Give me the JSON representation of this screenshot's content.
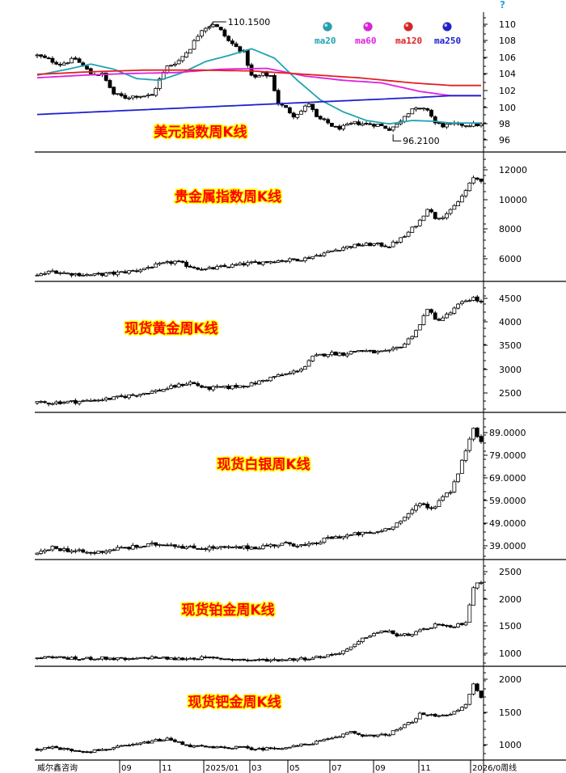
{
  "chart_data": [
    {
      "type": "candlestick",
      "title": "美元指数周K线",
      "ylim": [
        95,
        111
      ],
      "yticks": [
        "96",
        "98",
        "100",
        "102",
        "104",
        "106",
        "108",
        "110"
      ],
      "legend": [
        {
          "name": "ma20",
          "color": "#1fa3b3"
        },
        {
          "name": "ma60",
          "color": "#e020e0"
        },
        {
          "name": "ma120",
          "color": "#e02020"
        },
        {
          "name": "ma250",
          "color": "#2020d0"
        }
      ],
      "annotations": {
        "high": "110.1500",
        "low": "96.2100"
      },
      "path": [
        [
          0,
          106.2
        ],
        [
          6,
          105.2
        ],
        [
          10,
          105.8
        ],
        [
          14,
          104.1
        ],
        [
          17,
          104.0
        ],
        [
          20,
          101.7
        ],
        [
          23,
          101.3
        ],
        [
          26,
          101.5
        ],
        [
          30,
          101.5
        ],
        [
          32,
          103.4
        ],
        [
          34,
          104.9
        ],
        [
          37,
          105.6
        ],
        [
          40,
          107.1
        ],
        [
          43,
          109.3
        ],
        [
          46,
          109.9
        ],
        [
          48,
          109.1
        ],
        [
          50,
          107.9
        ],
        [
          52,
          107.2
        ],
        [
          54,
          106.6
        ],
        [
          56,
          103.8
        ],
        [
          57,
          103.6
        ],
        [
          59,
          104.0
        ],
        [
          61,
          103.8
        ],
        [
          63,
          100.6
        ],
        [
          65,
          100.0
        ],
        [
          67,
          99.2
        ],
        [
          69,
          99.7
        ],
        [
          71,
          100.6
        ],
        [
          73,
          98.9
        ],
        [
          76,
          98.3
        ],
        [
          78,
          97.7
        ],
        [
          80,
          97.8
        ],
        [
          83,
          98.3
        ],
        [
          86,
          98.2
        ],
        [
          89,
          98.1
        ],
        [
          92,
          97.6
        ],
        [
          94,
          98.1
        ],
        [
          96,
          99.2
        ],
        [
          98,
          100.0
        ],
        [
          100,
          99.8
        ],
        [
          102,
          99.9
        ],
        [
          104,
          98.3
        ],
        [
          106,
          98.0
        ],
        [
          108,
          98.1
        ]
      ],
      "ma": [
        {
          "name": "ma20",
          "points": [
            [
              0,
              103.9
            ],
            [
              8,
              104.6
            ],
            [
              14,
              105.2
            ],
            [
              20,
              104.6
            ],
            [
              26,
              103.5
            ],
            [
              32,
              103.3
            ],
            [
              38,
              104.2
            ],
            [
              44,
              105.5
            ],
            [
              50,
              106.2
            ],
            [
              56,
              107.0
            ],
            [
              62,
              105.9
            ],
            [
              68,
              103.3
            ],
            [
              74,
              101.0
            ],
            [
              80,
              99.6
            ],
            [
              86,
              98.6
            ],
            [
              92,
              98.2
            ],
            [
              98,
              98.6
            ],
            [
              104,
              98.5
            ],
            [
              108,
              98.3
            ]
          ]
        },
        {
          "name": "ma60",
          "points": [
            [
              0,
              103.6
            ],
            [
              12,
              103.9
            ],
            [
              24,
              104.1
            ],
            [
              36,
              104.2
            ],
            [
              48,
              104.6
            ],
            [
              60,
              104.7
            ],
            [
              70,
              103.8
            ],
            [
              80,
              103.3
            ],
            [
              90,
              103.0
            ],
            [
              100,
              102.0
            ],
            [
              108,
              101.5
            ]
          ]
        },
        {
          "name": "ma120",
          "points": [
            [
              0,
              104.0
            ],
            [
              14,
              104.3
            ],
            [
              28,
              104.5
            ],
            [
              42,
              104.5
            ],
            [
              56,
              104.4
            ],
            [
              70,
              104.0
            ],
            [
              84,
              103.6
            ],
            [
              98,
              103.0
            ],
            [
              108,
              102.7
            ]
          ]
        },
        {
          "name": "ma250",
          "points": [
            [
              0,
              99.3
            ],
            [
              20,
              99.7
            ],
            [
              40,
              100.1
            ],
            [
              60,
              100.5
            ],
            [
              80,
              100.9
            ],
            [
              100,
              101.3
            ],
            [
              108,
              101.5
            ]
          ]
        }
      ]
    },
    {
      "type": "candlestick",
      "title": "贵金属指数周K线",
      "ylim": [
        4700,
        12600
      ],
      "yticks": [
        "6000",
        "8000",
        "10000",
        "12000"
      ],
      "path": [
        [
          0,
          5000
        ],
        [
          4,
          5300
        ],
        [
          8,
          5150
        ],
        [
          14,
          5050
        ],
        [
          20,
          5150
        ],
        [
          26,
          5350
        ],
        [
          30,
          5600
        ],
        [
          34,
          5800
        ],
        [
          36,
          5900
        ],
        [
          40,
          5600
        ],
        [
          44,
          5400
        ],
        [
          48,
          5550
        ],
        [
          54,
          5750
        ],
        [
          58,
          5850
        ],
        [
          62,
          5950
        ],
        [
          66,
          6000
        ],
        [
          70,
          6100
        ],
        [
          76,
          6500
        ],
        [
          80,
          6800
        ],
        [
          84,
          6950
        ],
        [
          88,
          7000
        ],
        [
          92,
          6900
        ],
        [
          96,
          7500
        ],
        [
          98,
          8000
        ],
        [
          100,
          8500
        ],
        [
          102,
          9300
        ],
        [
          104,
          8700
        ],
        [
          106,
          8800
        ],
        [
          108,
          9100
        ],
        [
          110,
          9700
        ],
        [
          112,
          10400
        ],
        [
          114,
          11200
        ],
        [
          116,
          11100
        ]
      ]
    },
    {
      "type": "candlestick",
      "title": "现货黄金周K线",
      "ylim": [
        2150,
        4720
      ],
      "yticks": [
        "2500",
        "3000",
        "3500",
        "4000",
        "4500"
      ],
      "path": [
        [
          0,
          2320
        ],
        [
          6,
          2340
        ],
        [
          12,
          2360
        ],
        [
          20,
          2420
        ],
        [
          26,
          2500
        ],
        [
          32,
          2580
        ],
        [
          38,
          2700
        ],
        [
          40,
          2740
        ],
        [
          44,
          2620
        ],
        [
          50,
          2640
        ],
        [
          56,
          2700
        ],
        [
          62,
          2860
        ],
        [
          66,
          2920
        ],
        [
          70,
          3060
        ],
        [
          72,
          3250
        ],
        [
          76,
          3330
        ],
        [
          80,
          3320
        ],
        [
          84,
          3390
        ],
        [
          88,
          3350
        ],
        [
          92,
          3360
        ],
        [
          96,
          3520
        ],
        [
          98,
          3700
        ],
        [
          100,
          3900
        ],
        [
          102,
          4250
        ],
        [
          104,
          4000
        ],
        [
          106,
          4050
        ],
        [
          108,
          4150
        ],
        [
          110,
          4300
        ],
        [
          112,
          4400
        ],
        [
          114,
          4450
        ],
        [
          116,
          4350
        ]
      ]
    },
    {
      "type": "candlestick",
      "title": "现货白银周K线",
      "ylim": [
        26.5,
        93
      ],
      "yticks": [
        "89.0000",
        "79.0000",
        "69.0000",
        "59.0000",
        "49.0000",
        "39.0000"
      ],
      "path": [
        [
          0,
          28.5
        ],
        [
          4,
          31.5
        ],
        [
          8,
          30.5
        ],
        [
          14,
          29.0
        ],
        [
          20,
          31.0
        ],
        [
          26,
          32.0
        ],
        [
          30,
          33.0
        ],
        [
          34,
          33.5
        ],
        [
          40,
          31.5
        ],
        [
          46,
          31.5
        ],
        [
          52,
          31.5
        ],
        [
          58,
          32.0
        ],
        [
          62,
          33.0
        ],
        [
          66,
          33.5
        ],
        [
          70,
          32.5
        ],
        [
          72,
          33.0
        ],
        [
          76,
          36.0
        ],
        [
          80,
          37.0
        ],
        [
          84,
          38.0
        ],
        [
          88,
          38.5
        ],
        [
          92,
          41.0
        ],
        [
          96,
          45.0
        ],
        [
          98,
          49.0
        ],
        [
          100,
          53.0
        ],
        [
          102,
          50.0
        ],
        [
          104,
          51.0
        ],
        [
          106,
          56.0
        ],
        [
          108,
          58.0
        ],
        [
          110,
          66.0
        ],
        [
          112,
          77.0
        ],
        [
          114,
          88.0
        ],
        [
          116,
          80.0
        ]
      ]
    },
    {
      "type": "candlestick",
      "title": "现货铂金周K线",
      "ylim": [
        850,
        2620
      ],
      "yticks": [
        "2500",
        "2000",
        "1500",
        "1000"
      ],
      "path": [
        [
          0,
          980
        ],
        [
          4,
          1000
        ],
        [
          10,
          960
        ],
        [
          16,
          980
        ],
        [
          24,
          950
        ],
        [
          30,
          990
        ],
        [
          36,
          960
        ],
        [
          42,
          980
        ],
        [
          48,
          970
        ],
        [
          56,
          940
        ],
        [
          64,
          950
        ],
        [
          70,
          970
        ],
        [
          74,
          1000
        ],
        [
          78,
          1050
        ],
        [
          82,
          1150
        ],
        [
          86,
          1350
        ],
        [
          88,
          1400
        ],
        [
          92,
          1450
        ],
        [
          94,
          1350
        ],
        [
          98,
          1400
        ],
        [
          102,
          1480
        ],
        [
          104,
          1560
        ],
        [
          106,
          1520
        ],
        [
          108,
          1500
        ],
        [
          110,
          1550
        ],
        [
          112,
          1600
        ],
        [
          114,
          2200
        ],
        [
          116,
          2300
        ]
      ]
    },
    {
      "type": "candlestick",
      "title": "现货钯金周K线",
      "ylim": [
        780,
        2120
      ],
      "yticks": [
        "2000",
        "1500",
        "1000"
      ],
      "path": [
        [
          0,
          930
        ],
        [
          4,
          960
        ],
        [
          8,
          920
        ],
        [
          14,
          900
        ],
        [
          20,
          950
        ],
        [
          26,
          1000
        ],
        [
          30,
          1050
        ],
        [
          34,
          1080
        ],
        [
          40,
          980
        ],
        [
          46,
          950
        ],
        [
          52,
          960
        ],
        [
          58,
          930
        ],
        [
          62,
          950
        ],
        [
          66,
          960
        ],
        [
          70,
          1000
        ],
        [
          74,
          1050
        ],
        [
          78,
          1100
        ],
        [
          82,
          1200
        ],
        [
          84,
          1150
        ],
        [
          88,
          1120
        ],
        [
          92,
          1160
        ],
        [
          96,
          1280
        ],
        [
          98,
          1350
        ],
        [
          100,
          1450
        ],
        [
          104,
          1430
        ],
        [
          106,
          1450
        ],
        [
          108,
          1460
        ],
        [
          110,
          1500
        ],
        [
          112,
          1600
        ],
        [
          114,
          1900
        ],
        [
          116,
          1700
        ]
      ]
    }
  ],
  "x_axis": {
    "labels": [
      "威尔鑫咨询",
      "09",
      "11",
      "2025/01",
      "03",
      "05",
      "07",
      "09",
      "11",
      "2026/0周线"
    ],
    "colors": {
      "axis": "#000000",
      "grid": "#000000",
      "up": "#000000",
      "down": "#000000",
      "title": "#ff0000",
      "title_outline": "#ffff00",
      "background": "#ffffff"
    }
  }
}
